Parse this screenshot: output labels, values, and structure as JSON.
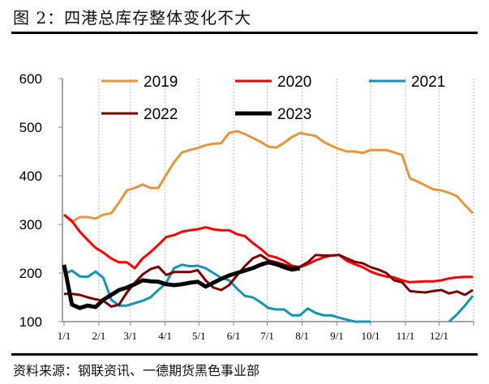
{
  "title": "图 2：四港总库存整体变化不大",
  "source": "资料来源：钢联资讯、一德期货黑色事业部",
  "chart_data": {
    "type": "line",
    "xlabel": "",
    "ylabel": "",
    "ylim": [
      100,
      600
    ],
    "yticks": [
      100,
      200,
      300,
      400,
      500,
      600
    ],
    "xticks": [
      "1/1",
      "2/1",
      "3/1",
      "4/1",
      "5/1",
      "6/1",
      "7/1",
      "8/1",
      "9/1",
      "10/1",
      "11/1",
      "12/1"
    ],
    "grid": "vertical dotted",
    "legend": "top",
    "x": [
      "1/1",
      "1/8",
      "1/15",
      "1/22",
      "1/29",
      "2/5",
      "2/12",
      "2/19",
      "2/26",
      "3/5",
      "3/12",
      "3/19",
      "3/26",
      "4/2",
      "4/9",
      "4/16",
      "4/23",
      "4/30",
      "5/7",
      "5/14",
      "5/21",
      "5/28",
      "6/4",
      "6/11",
      "6/18",
      "6/25",
      "7/2",
      "7/9",
      "7/16",
      "7/23",
      "7/30",
      "8/6",
      "8/13",
      "8/20",
      "8/27",
      "9/3",
      "9/10",
      "9/17",
      "9/24",
      "10/1",
      "10/8",
      "10/15",
      "10/22",
      "10/29",
      "11/5",
      "11/12",
      "11/19",
      "11/26",
      "12/3",
      "12/10",
      "12/17",
      "12/24",
      "12/31"
    ],
    "series": [
      {
        "name": "2019",
        "color": "#E8963E",
        "width": 3,
        "values": [
          320,
          305,
          315,
          315,
          312,
          320,
          323,
          345,
          370,
          375,
          382,
          375,
          375,
          402,
          428,
          448,
          453,
          457,
          463,
          466,
          467,
          488,
          492,
          486,
          478,
          470,
          460,
          458,
          468,
          480,
          488,
          485,
          482,
          470,
          462,
          455,
          450,
          450,
          447,
          453,
          453,
          453,
          448,
          443,
          395,
          388,
          380,
          372,
          370,
          365,
          358,
          340,
          323
        ]
      },
      {
        "name": "2020",
        "color": "#FF0000",
        "width": 3,
        "values": [
          320,
          307,
          285,
          268,
          252,
          242,
          230,
          222,
          222,
          210,
          230,
          243,
          258,
          274,
          278,
          285,
          288,
          290,
          294,
          290,
          288,
          288,
          280,
          276,
          262,
          250,
          236,
          232,
          225,
          215,
          212,
          218,
          226,
          232,
          236,
          237,
          225,
          218,
          212,
          203,
          197,
          193,
          191,
          185,
          181,
          182,
          183,
          183,
          185,
          189,
          191,
          192,
          192
        ]
      },
      {
        "name": "2021",
        "color": "#1394B8",
        "width": 3,
        "values": [
          198,
          205,
          193,
          192,
          203,
          190,
          145,
          133,
          133,
          138,
          143,
          150,
          165,
          180,
          210,
          217,
          214,
          215,
          210,
          200,
          190,
          185,
          168,
          153,
          150,
          140,
          128,
          125,
          125,
          113,
          113,
          127,
          118,
          113,
          113,
          108,
          104,
          100,
          100,
          100,
          null,
          null,
          null,
          null,
          null,
          null,
          null,
          null,
          null,
          100,
          115,
          133,
          153
        ]
      },
      {
        "name": "2022",
        "color": "#7B0000",
        "width": 3,
        "values": [
          157,
          157,
          155,
          150,
          146,
          143,
          131,
          135,
          160,
          180,
          197,
          208,
          213,
          196,
          202,
          202,
          202,
          206,
          185,
          170,
          165,
          175,
          195,
          214,
          230,
          237,
          226,
          222,
          217,
          212,
          213,
          222,
          237,
          236,
          236,
          237,
          230,
          223,
          220,
          212,
          207,
          200,
          185,
          181,
          163,
          161,
          160,
          163,
          165,
          158,
          162,
          155,
          165
        ]
      },
      {
        "name": "2023",
        "color": "#000000",
        "width": 5,
        "values": [
          217,
          135,
          128,
          133,
          130,
          145,
          155,
          165,
          170,
          177,
          185,
          183,
          182,
          177,
          175,
          177,
          180,
          182,
          172,
          180,
          188,
          195,
          200,
          205,
          210,
          217,
          222,
          218,
          212,
          207,
          210,
          null,
          null,
          null,
          null,
          null,
          null,
          null,
          null,
          null,
          null,
          null,
          null,
          null,
          null,
          null,
          null,
          null,
          null,
          null,
          null,
          null,
          null
        ]
      }
    ]
  }
}
